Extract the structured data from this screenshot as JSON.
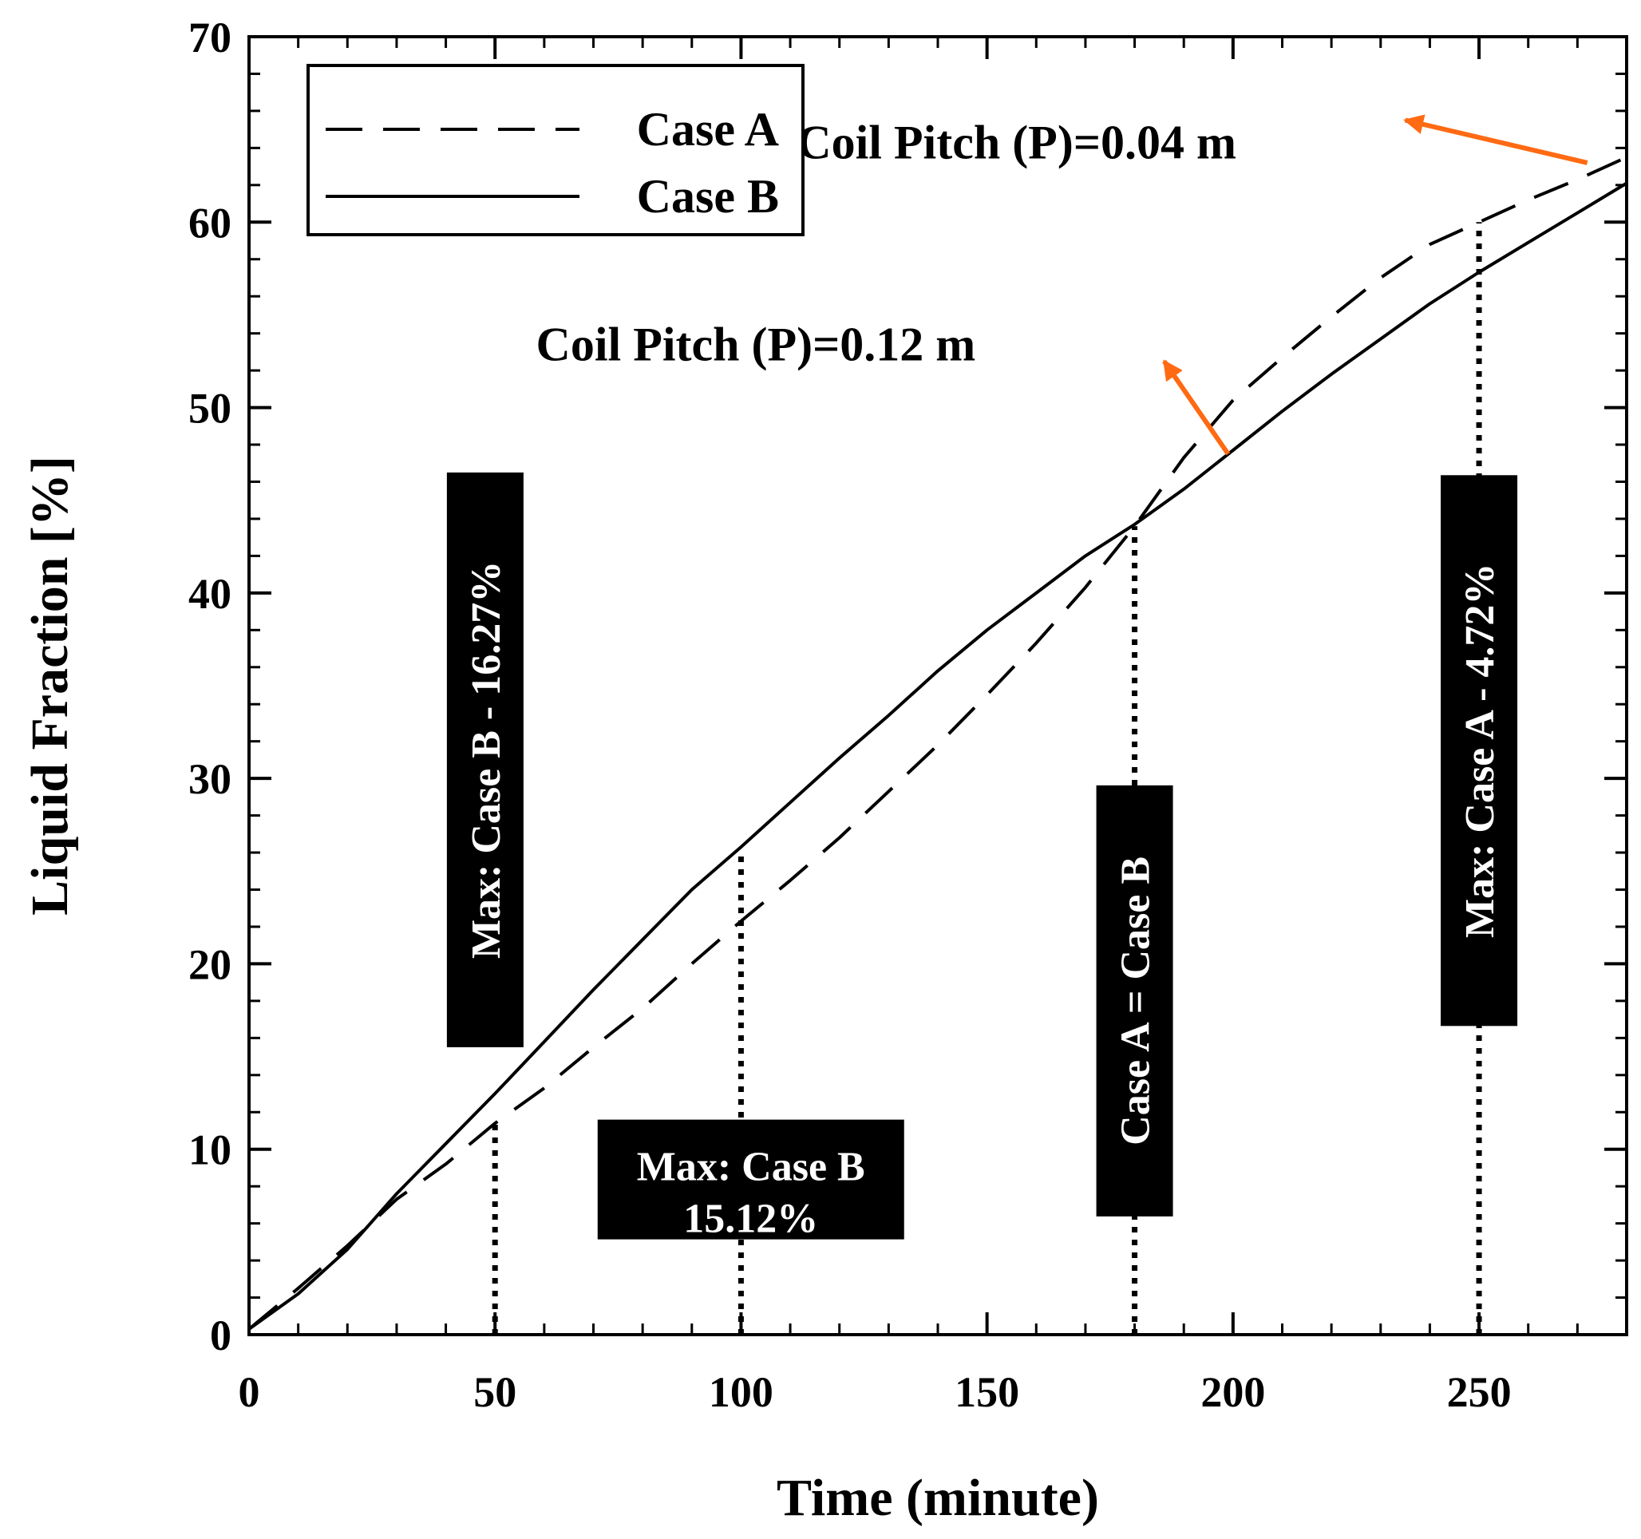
{
  "chart_data": {
    "type": "line",
    "xlabel": "Time (minute)",
    "ylabel": "Liquid Fraction [%]",
    "xlim": [
      0,
      280
    ],
    "ylim": [
      0,
      70
    ],
    "x_ticks": [
      0,
      50,
      100,
      150,
      200,
      250
    ],
    "y_ticks": [
      0,
      10,
      20,
      30,
      40,
      50,
      60,
      70
    ],
    "x_minor_step": 10,
    "y_minor_step": 2,
    "grid": false,
    "legend_position": "top-left",
    "series": [
      {
        "name": "Case A",
        "style": "dashed",
        "x": [
          0,
          10,
          20,
          30,
          40,
          50,
          60,
          70,
          80,
          90,
          100,
          110,
          120,
          130,
          140,
          150,
          160,
          170,
          180,
          190,
          200,
          210,
          220,
          230,
          240,
          250,
          260,
          270,
          280
        ],
        "y": [
          0.3,
          2.5,
          4.8,
          7.3,
          9.2,
          11.4,
          13.3,
          15.5,
          17.6,
          20.0,
          22.3,
          24.5,
          26.8,
          29.3,
          31.8,
          34.5,
          37.3,
          40.3,
          43.6,
          47.3,
          50.4,
          52.7,
          54.9,
          57.0,
          58.8,
          60.0,
          61.2,
          62.3,
          63.5
        ]
      },
      {
        "name": "Case B",
        "style": "solid",
        "x": [
          0,
          10,
          20,
          30,
          40,
          50,
          60,
          70,
          80,
          90,
          100,
          110,
          120,
          130,
          140,
          150,
          160,
          170,
          180,
          190,
          200,
          210,
          220,
          230,
          240,
          250,
          260,
          270,
          280
        ],
        "y": [
          0.3,
          2.2,
          4.6,
          7.6,
          10.3,
          13.0,
          15.8,
          18.6,
          21.3,
          24.0,
          26.3,
          28.7,
          31.1,
          33.4,
          35.8,
          38.0,
          40.0,
          42.0,
          43.7,
          45.6,
          47.7,
          49.8,
          51.8,
          53.7,
          55.6,
          57.3,
          58.9,
          60.5,
          62.1
        ]
      }
    ],
    "reference_lines": [
      {
        "x": 50,
        "y_from": 0,
        "y_to": 11.4
      },
      {
        "x": 100,
        "y_from": 0,
        "y_to": 26.0
      },
      {
        "x": 180,
        "y_from": 0,
        "y_to": 43.6
      },
      {
        "x": 250,
        "y_from": 0,
        "y_to": 60.0
      }
    ],
    "annotations": {
      "box_b_16": {
        "text": "Max: Case B - 16.27%",
        "x": 48,
        "y": 31,
        "rotated": true
      },
      "box_b_15_line1": {
        "text": "Max: Case B",
        "x": 102,
        "y": 9.1
      },
      "box_b_15_line2": {
        "text": "15.12%",
        "x": 102,
        "y": 6.3
      },
      "box_equal": {
        "text": "Case A = Case B",
        "x": 180,
        "y": 18,
        "rotated": true
      },
      "box_a_4": {
        "text": "Max: Case A - 4.72%",
        "x": 250,
        "y": 31.5,
        "rotated": true
      },
      "pitch_004": {
        "text": "Coil Pitch (P)=0.04 m",
        "x": 156,
        "y": 64.3,
        "arrow_from": [
          272,
          63.2
        ],
        "arrow_to": [
          235,
          65.5
        ]
      },
      "pitch_012": {
        "text": "Coil Pitch (P)=0.12 m",
        "x": 103,
        "y": 53.4,
        "arrow_from": [
          199,
          47.5
        ],
        "arrow_to": [
          186,
          52.5
        ]
      }
    },
    "colors": {
      "line": "#000000",
      "arrow": "#ff6a13",
      "box_fill": "#000000",
      "box_text": "#ffffff",
      "background": "#ffffff"
    }
  }
}
